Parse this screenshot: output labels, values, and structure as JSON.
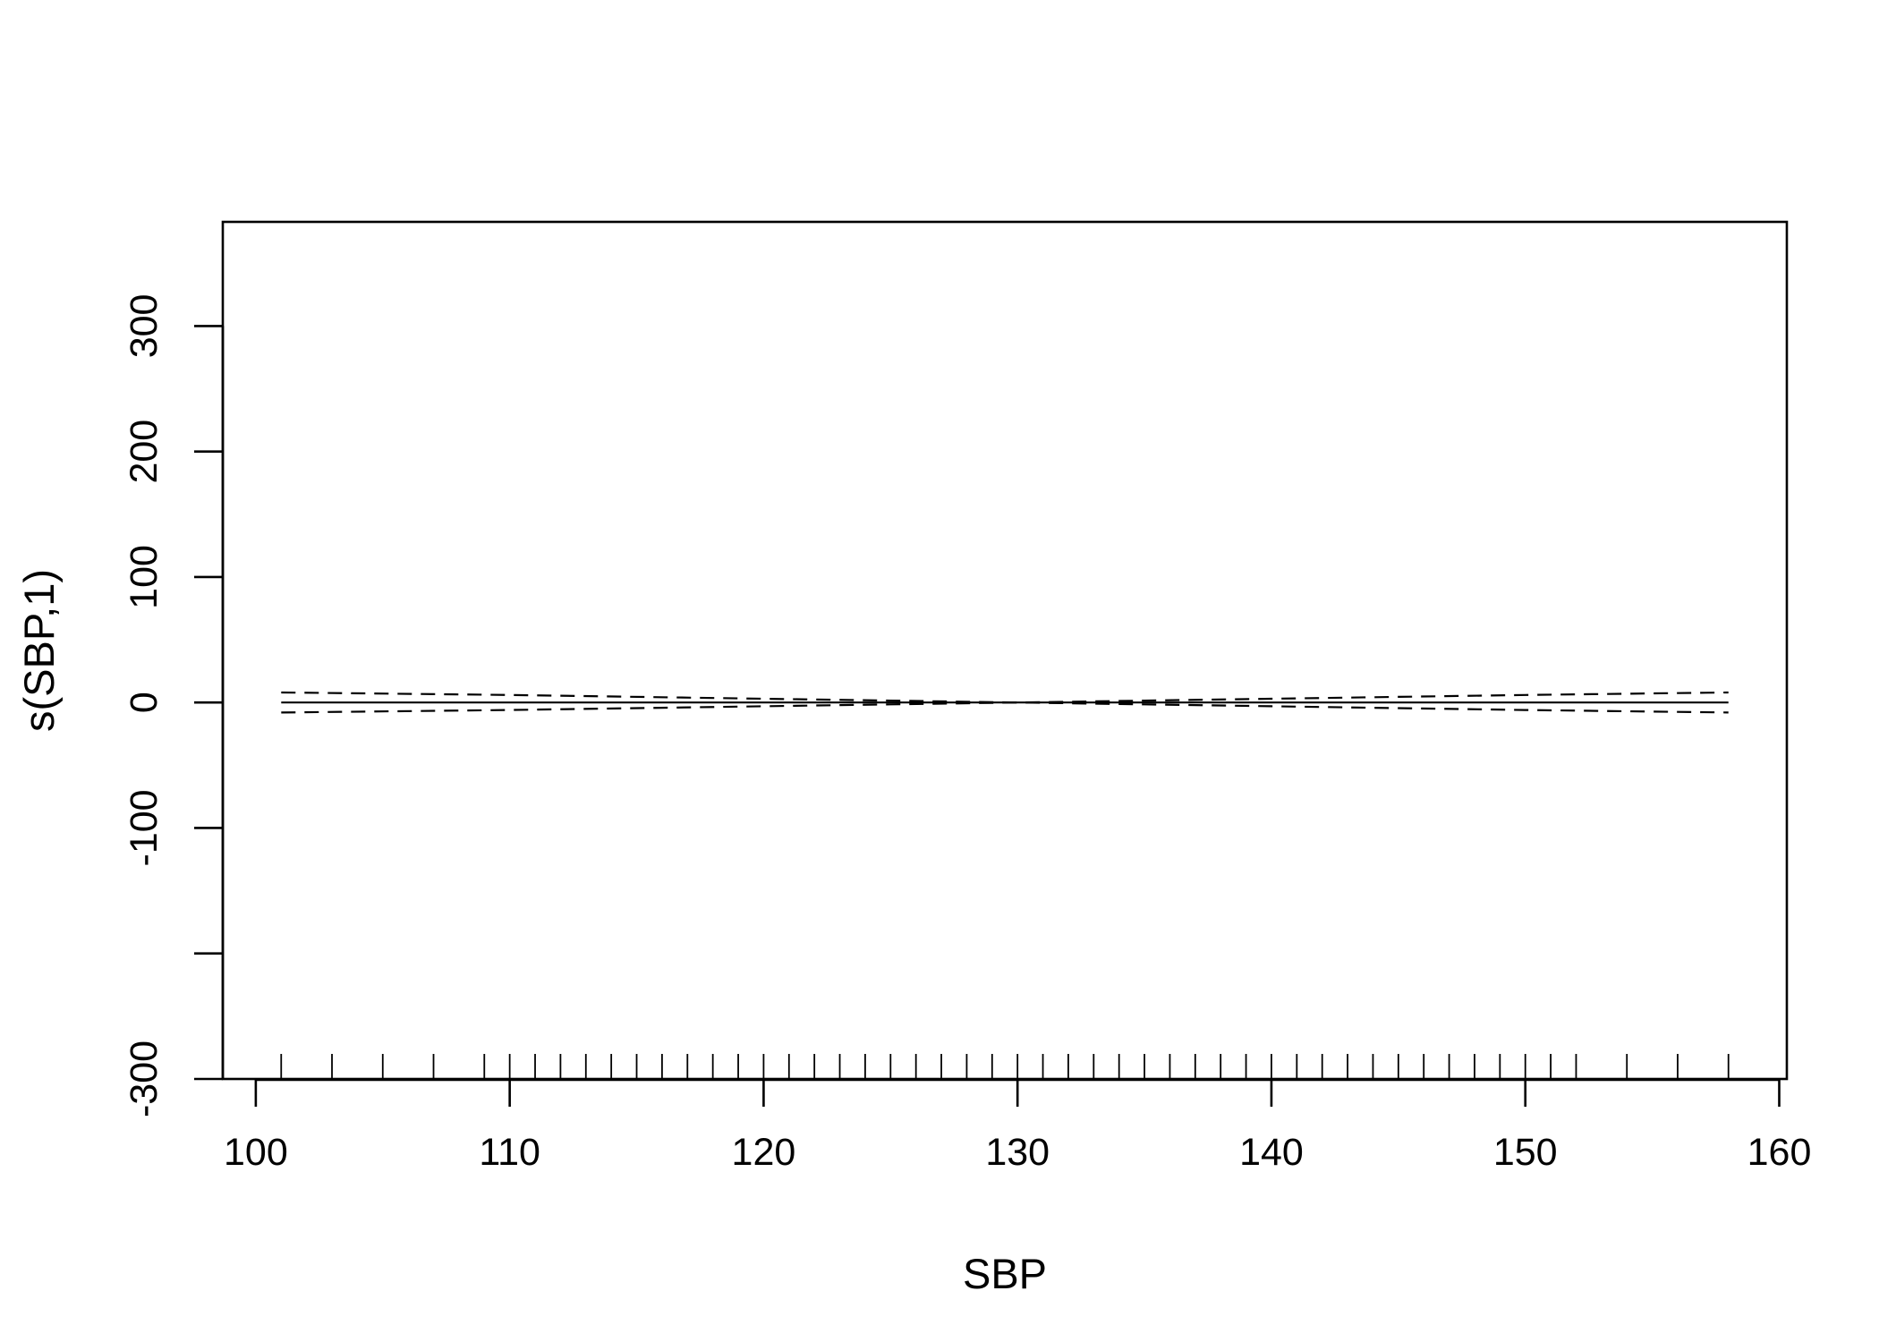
{
  "chart_data": {
    "type": "line",
    "title": "",
    "xlabel": "SBP",
    "ylabel": "s(SBP,1)",
    "xlim": [
      98.7,
      160.3
    ],
    "ylim": [
      -300,
      383
    ],
    "x_ticks": [
      100,
      110,
      120,
      130,
      140,
      150,
      160
    ],
    "x_tick_labels": [
      "100",
      "110",
      "120",
      "130",
      "140",
      "150",
      "160"
    ],
    "y_ticks": [
      -300,
      -200,
      -100,
      0,
      100,
      200,
      300
    ],
    "y_tick_labels": [
      "-300",
      "",
      "-100",
      "0",
      "100",
      "200",
      "300"
    ],
    "grid": false,
    "legend": "none",
    "series": [
      {
        "style": "solid",
        "x": [
          101,
          158
        ],
        "y": [
          0,
          0
        ]
      },
      {
        "style": "dashed",
        "x": [
          101,
          110,
          120,
          125,
          130,
          135,
          140,
          150,
          158
        ],
        "y": [
          8,
          6,
          3,
          1.5,
          0,
          1.5,
          3,
          6,
          8
        ]
      },
      {
        "style": "dashed",
        "x": [
          101,
          110,
          120,
          125,
          130,
          135,
          140,
          150,
          158
        ],
        "y": [
          -8,
          -6,
          -3,
          -1.5,
          0,
          -1.5,
          -3,
          -6,
          -8
        ]
      }
    ],
    "rug": [
      101,
      103,
      105,
      107,
      109,
      110,
      111,
      112,
      113,
      114,
      115,
      116,
      117,
      118,
      119,
      120,
      121,
      122,
      123,
      124,
      125,
      126,
      127,
      128,
      129,
      130,
      131,
      132,
      133,
      134,
      135,
      136,
      137,
      138,
      139,
      140,
      141,
      142,
      143,
      144,
      145,
      146,
      147,
      148,
      149,
      150,
      151,
      152,
      154,
      156,
      158
    ],
    "colors": {
      "line": "#000000",
      "background": "#ffffff"
    }
  }
}
